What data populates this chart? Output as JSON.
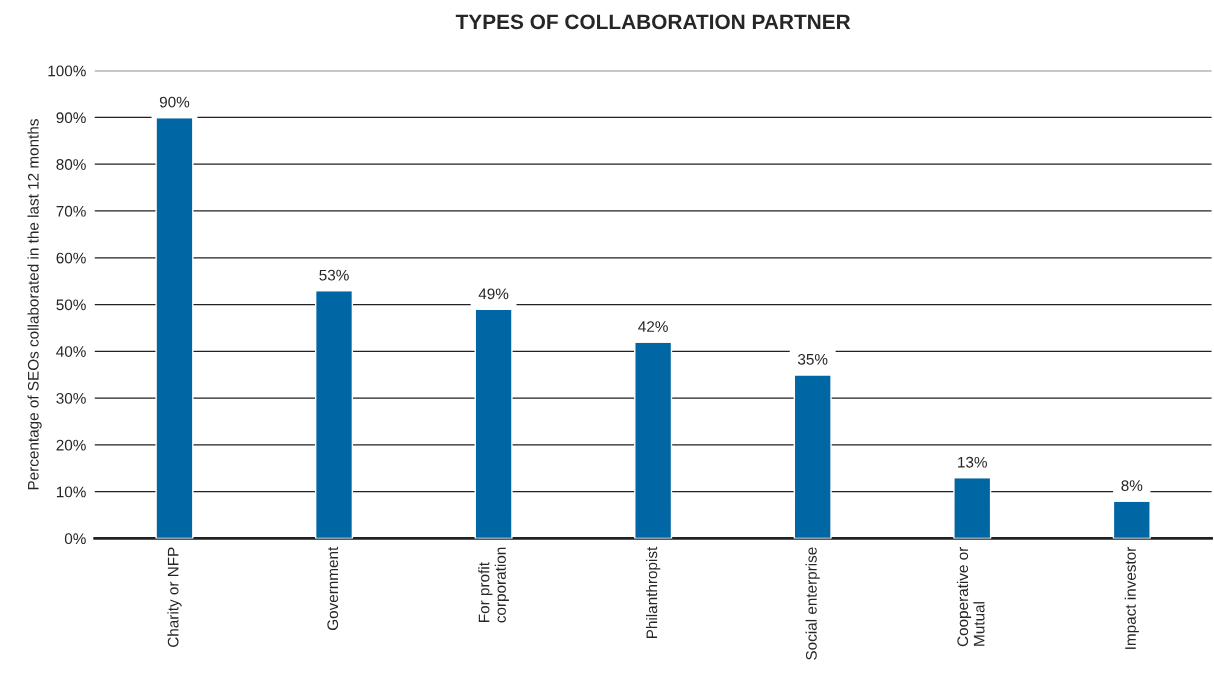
{
  "chart_data": {
    "type": "bar",
    "title": "TYPES OF COLLABORATION PARTNER",
    "ylabel": "Percentage of SEOs collaborated in the last 12 months",
    "categories": [
      "Charity or NFP",
      "Government",
      "For profit\ncorporation",
      "Philanthropist",
      "Social enterprise",
      "Cooperative or\nMutual",
      "Impact investor"
    ],
    "values": [
      90,
      53,
      49,
      42,
      35,
      13,
      8
    ],
    "value_labels": [
      "90%",
      "53%",
      "49%",
      "42%",
      "35%",
      "13%",
      "8%"
    ],
    "color": "#0066a4",
    "ylim": [
      0,
      100
    ],
    "yticks": [
      {
        "value": 0,
        "label": "0%"
      },
      {
        "value": 10,
        "label": "10%"
      },
      {
        "value": 20,
        "label": "20%"
      },
      {
        "value": 30,
        "label": "30%"
      },
      {
        "value": 40,
        "label": "40%"
      },
      {
        "value": 50,
        "label": "50%"
      },
      {
        "value": 60,
        "label": "60%"
      },
      {
        "value": 70,
        "label": "70%"
      },
      {
        "value": 80,
        "label": "80%"
      },
      {
        "value": 90,
        "label": "90%"
      },
      {
        "value": 100,
        "label": "100%"
      }
    ],
    "grid": "y"
  }
}
